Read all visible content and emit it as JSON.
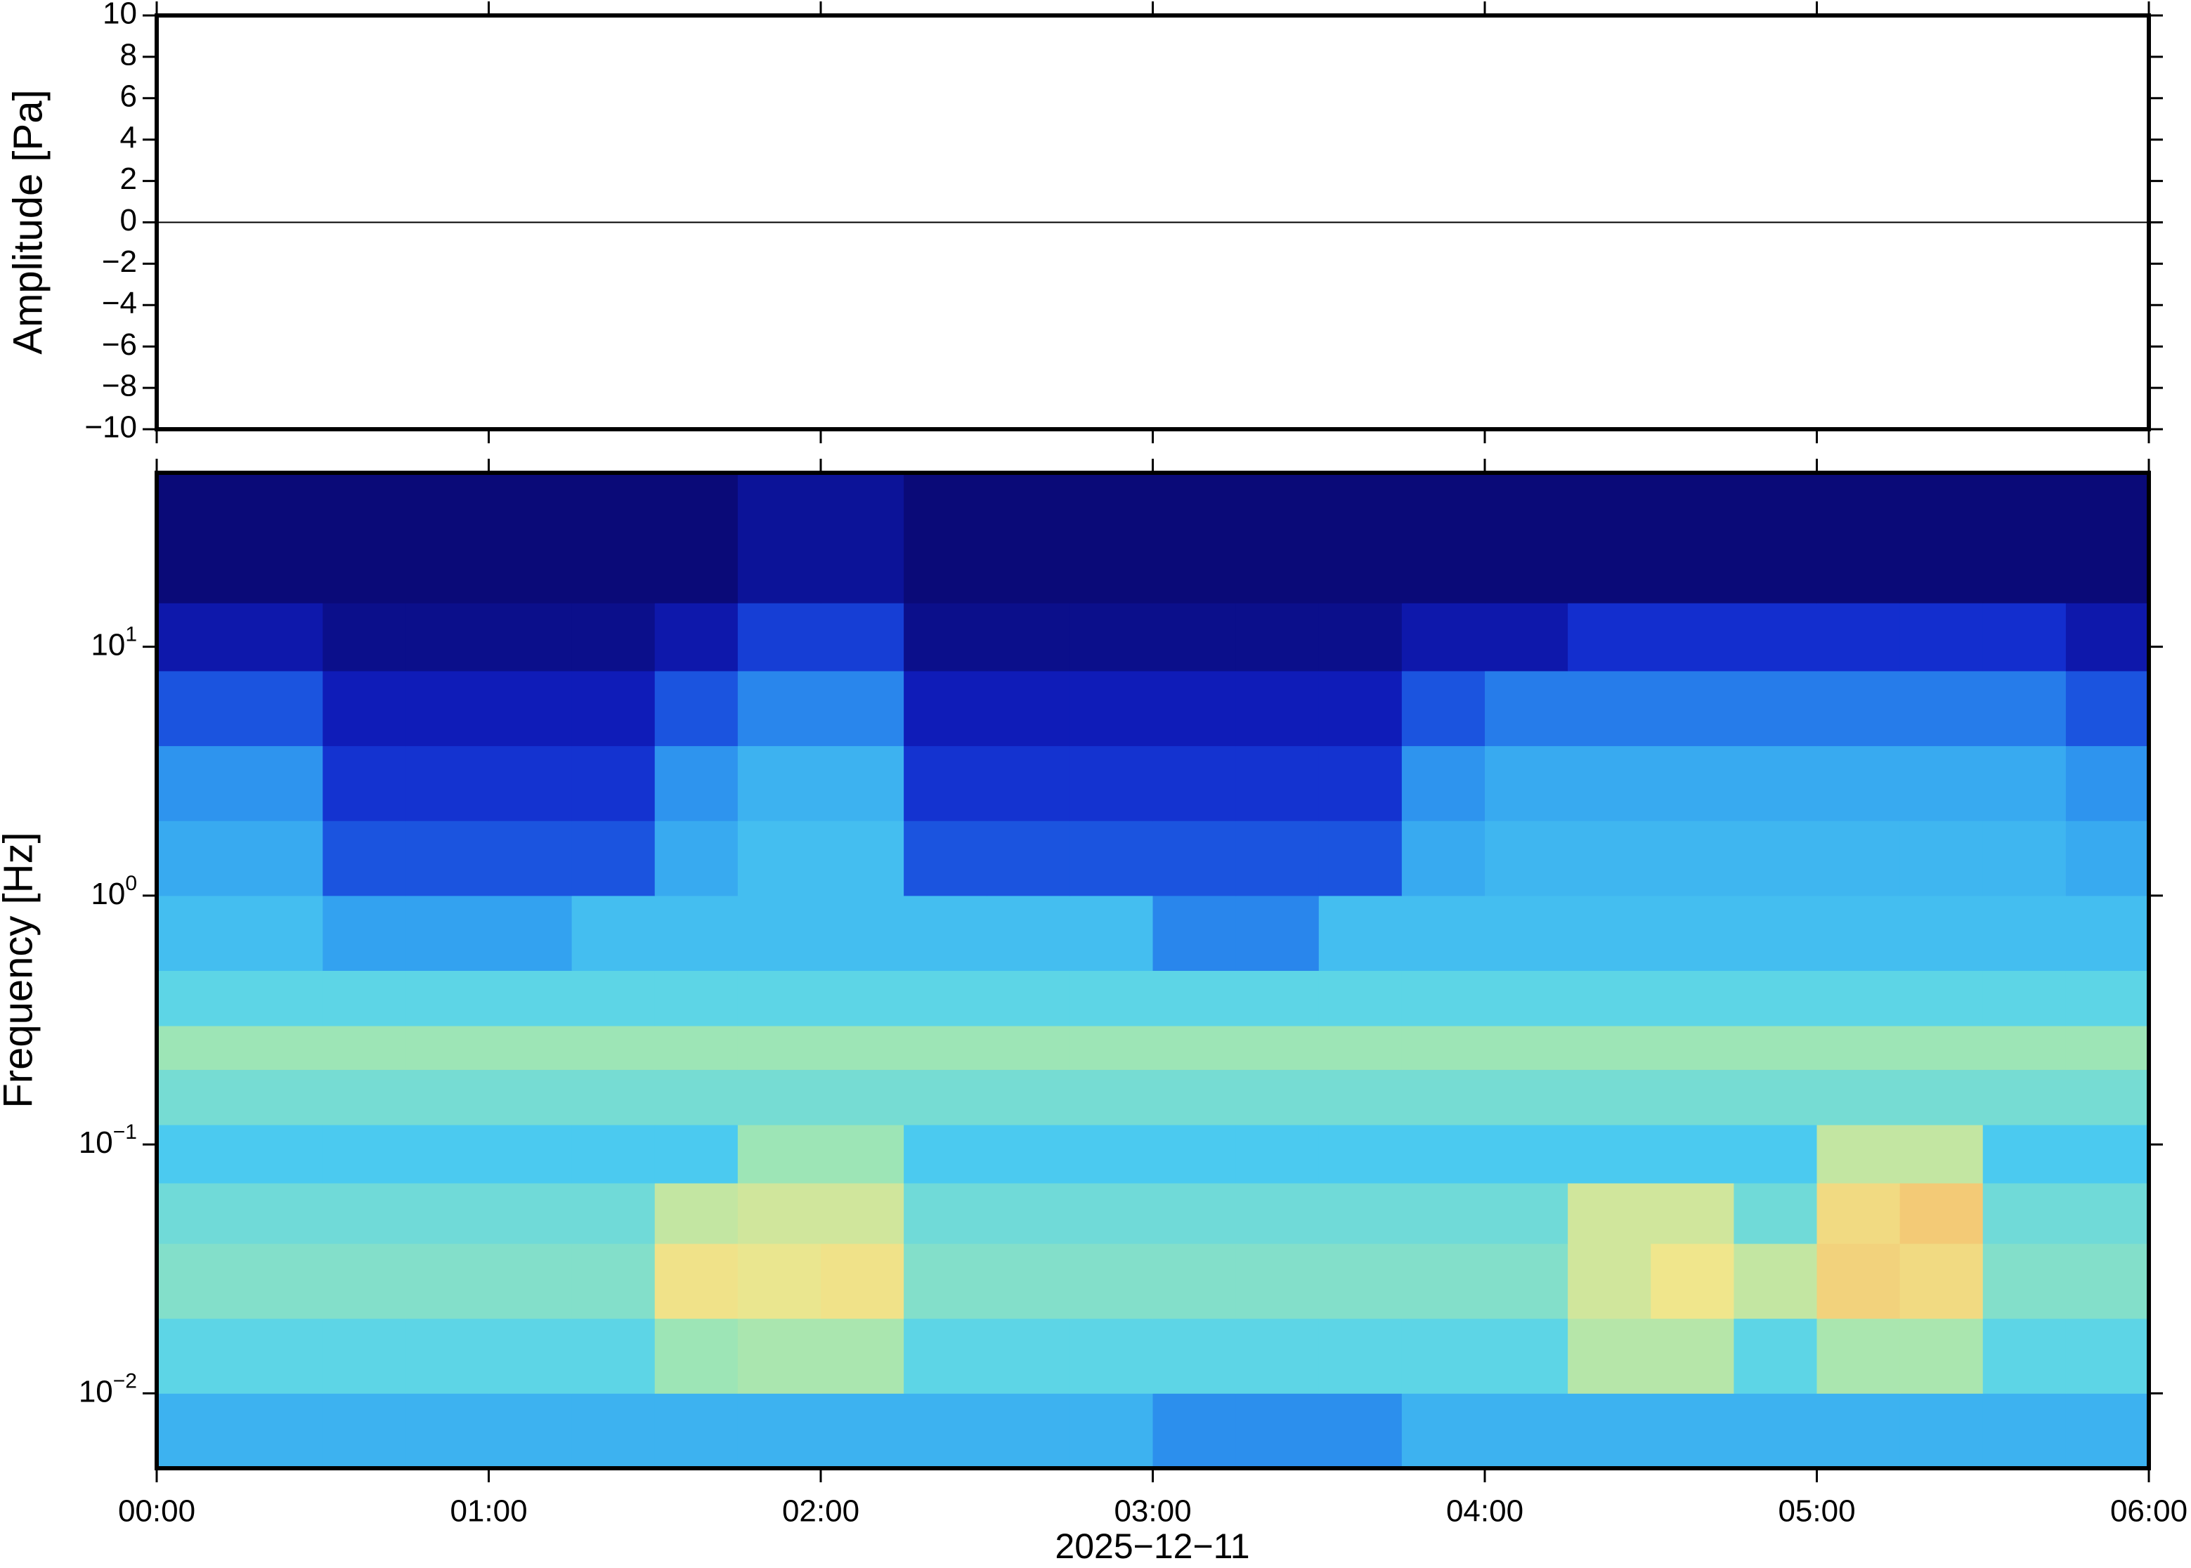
{
  "chart_data": [
    {
      "type": "line",
      "ylabel": "Amplitude [Pa]",
      "x": [
        0,
        6
      ],
      "values": [
        0,
        0
      ],
      "color": "#000000",
      "xlim": [
        0,
        6
      ],
      "ylim": [
        -10,
        10
      ],
      "yticks": [
        {
          "value": -10,
          "label": "−10"
        },
        {
          "value": -8,
          "label": "−8"
        },
        {
          "value": -6,
          "label": "−6"
        },
        {
          "value": -4,
          "label": "−4"
        },
        {
          "value": -2,
          "label": "−2"
        },
        0,
        2,
        4,
        6,
        8,
        10
      ]
    },
    {
      "type": "heatmap",
      "ylabel": "Frequency [Hz]",
      "xlabel": "2025−12−11",
      "ylog": true,
      "xlim": [
        0,
        6
      ],
      "ylim": [
        0.005,
        50
      ],
      "xticks": [
        {
          "value": 0,
          "label": "00:00"
        },
        {
          "value": 1,
          "label": "01:00"
        },
        {
          "value": 2,
          "label": "02:00"
        },
        {
          "value": 3,
          "label": "03:00"
        },
        {
          "value": 4,
          "label": "04:00"
        },
        {
          "value": 5,
          "label": "05:00"
        },
        {
          "value": 6,
          "label": "06:00"
        }
      ],
      "yticks": [
        {
          "value": 0.01,
          "label": "10",
          "exponent": "−2"
        },
        {
          "value": 0.1,
          "label": "10",
          "exponent": "−1"
        },
        {
          "value": 1,
          "label": "10",
          "exponent": "0"
        },
        {
          "value": 10,
          "label": "10",
          "exponent": "1"
        }
      ],
      "xbins": [
        0,
        0.25,
        0.5,
        0.75,
        1,
        1.25,
        1.5,
        1.75,
        2,
        2.25,
        2.5,
        2.75,
        3,
        3.25,
        3.5,
        3.75,
        4,
        4.25,
        4.5,
        4.75,
        5,
        5.25,
        5.5,
        5.75,
        6
      ],
      "ybins": [
        0.005,
        0.01,
        0.02,
        0.04,
        0.07,
        0.12,
        0.2,
        0.3,
        0.5,
        1,
        2,
        4,
        8,
        15,
        50
      ],
      "zlim": [
        0,
        100
      ],
      "colormap": [
        "#0a0a78",
        "#1020c8",
        "#1e64e6",
        "#32a0f0",
        "#50d2f0",
        "#a0e6b4",
        "#f0e68c",
        "#f5b464",
        "#f07846"
      ],
      "z": [
        [
          42,
          42,
          42,
          42,
          42,
          42,
          42,
          42,
          42,
          42,
          42,
          42,
          34,
          34,
          34,
          42,
          42,
          42,
          42,
          42,
          42,
          42,
          42,
          42
        ],
        [
          52,
          52,
          52,
          52,
          52,
          52,
          62,
          64,
          64,
          52,
          52,
          52,
          52,
          52,
          52,
          52,
          52,
          66,
          66,
          52,
          64,
          64,
          52,
          52
        ],
        [
          58,
          58,
          58,
          58,
          58,
          58,
          76,
          74,
          76,
          58,
          58,
          58,
          58,
          58,
          58,
          58,
          58,
          70,
          75,
          68,
          80,
          78,
          58,
          58
        ],
        [
          55,
          55,
          55,
          55,
          55,
          55,
          68,
          70,
          70,
          55,
          55,
          55,
          55,
          55,
          55,
          55,
          55,
          70,
          70,
          55,
          78,
          82,
          55,
          55
        ],
        [
          48,
          48,
          48,
          48,
          48,
          48,
          48,
          62,
          62,
          48,
          48,
          48,
          48,
          48,
          48,
          48,
          48,
          48,
          48,
          48,
          68,
          68,
          48,
          48
        ],
        [
          56,
          56,
          56,
          56,
          56,
          56,
          56,
          56,
          56,
          56,
          56,
          56,
          56,
          56,
          56,
          56,
          56,
          56,
          56,
          56,
          56,
          56,
          56,
          56
        ],
        [
          62,
          62,
          62,
          62,
          62,
          62,
          62,
          62,
          62,
          62,
          62,
          62,
          62,
          62,
          62,
          62,
          62,
          62,
          62,
          62,
          62,
          62,
          62,
          62
        ],
        [
          52,
          52,
          52,
          52,
          52,
          52,
          52,
          52,
          52,
          52,
          52,
          52,
          52,
          52,
          52,
          52,
          52,
          52,
          52,
          52,
          52,
          52,
          52,
          52
        ],
        [
          45,
          45,
          38,
          38,
          38,
          45,
          45,
          45,
          45,
          45,
          45,
          45,
          32,
          32,
          45,
          45,
          45,
          45,
          45,
          45,
          45,
          45,
          45,
          45
        ],
        [
          40,
          40,
          22,
          22,
          22,
          22,
          40,
          45,
          45,
          22,
          22,
          22,
          22,
          22,
          22,
          40,
          43,
          43,
          43,
          43,
          43,
          43,
          43,
          40
        ],
        [
          35,
          35,
          16,
          16,
          16,
          16,
          35,
          42,
          42,
          16,
          16,
          16,
          16,
          16,
          16,
          35,
          40,
          40,
          40,
          40,
          40,
          40,
          40,
          35
        ],
        [
          22,
          22,
          10,
          10,
          10,
          10,
          22,
          32,
          32,
          10,
          10,
          10,
          10,
          10,
          10,
          22,
          30,
          30,
          30,
          30,
          30,
          30,
          30,
          22
        ],
        [
          8,
          8,
          3,
          3,
          3,
          3,
          8,
          18,
          18,
          3,
          3,
          3,
          3,
          3,
          3,
          8,
          8,
          15,
          15,
          15,
          15,
          15,
          15,
          8
        ],
        [
          0,
          0,
          0,
          0,
          0,
          0,
          0,
          5,
          5,
          0,
          0,
          0,
          0,
          0,
          0,
          0,
          0,
          0,
          0,
          0,
          0,
          0,
          0,
          0
        ]
      ]
    }
  ]
}
